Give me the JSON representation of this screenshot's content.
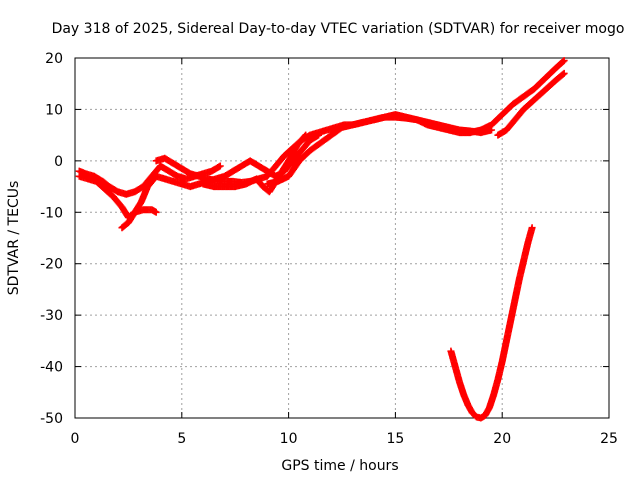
{
  "chart_data": {
    "type": "scatter",
    "title": "Day 318 of 2025, Sidereal Day-to-day VTEC variation (SDTVAR) for receiver mogo",
    "xlabel": "GPS time / hours",
    "ylabel": "SDTVAR / TECUs",
    "xlim": [
      0,
      25
    ],
    "ylim": [
      -50,
      20
    ],
    "xticks": [
      "0",
      "5",
      "10",
      "15",
      "20",
      "25"
    ],
    "yticks": [
      "-50",
      "-40",
      "-30",
      "-20",
      "-10",
      "0",
      "10",
      "20"
    ],
    "xtick_values": [
      0,
      5,
      10,
      15,
      20,
      25
    ],
    "ytick_values": [
      -50,
      -40,
      -30,
      -20,
      -10,
      0,
      10,
      20
    ],
    "grid": true,
    "marker": "plus",
    "color": "#ff0000",
    "series": [
      {
        "x": [
          0.2,
          0.5,
          0.9,
          1.3,
          1.6,
          2.0,
          2.4,
          2.8,
          3.2,
          3.6,
          4.0,
          4.4,
          4.8,
          5.2,
          5.6,
          6.0,
          6.4,
          6.8
        ],
        "y": [
          -2,
          -2.5,
          -3,
          -4,
          -5,
          -6,
          -6.5,
          -6,
          -5,
          -3,
          -1,
          -2,
          -3,
          -3.5,
          -3,
          -2.5,
          -2,
          -1
        ]
      },
      {
        "x": [
          0.2,
          0.6,
          1.0,
          1.4,
          1.8,
          2.2,
          2.5,
          2.8,
          3.2,
          3.6,
          3.8
        ],
        "y": [
          -3,
          -3.5,
          -4,
          -5.5,
          -7,
          -9,
          -11,
          -10,
          -9.5,
          -9.5,
          -10
        ]
      },
      {
        "x": [
          2.2,
          2.5,
          2.8,
          3.1,
          3.4,
          3.8,
          4.2,
          4.6,
          5.0,
          5.4,
          5.8,
          6.2,
          6.6,
          7.0,
          7.4,
          7.8,
          8.2,
          8.6,
          9.0,
          9.4,
          9.8,
          10.2,
          10.6,
          11.0,
          11.4
        ],
        "y": [
          -13,
          -12,
          -10,
          -8,
          -5,
          -3,
          -3.5,
          -4,
          -4.5,
          -5,
          -4.5,
          -4,
          -3.5,
          -3,
          -2,
          -1,
          0,
          -1,
          -2,
          -3,
          -2,
          0,
          2,
          4,
          5
        ]
      },
      {
        "x": [
          3.8,
          4.2,
          4.6,
          5.0,
          5.4,
          5.8,
          6.2,
          6.6,
          7.0,
          7.4,
          7.8,
          8.2,
          8.6,
          9.0,
          9.4,
          9.8,
          10.2,
          10.6,
          11.0,
          11.4,
          11.8,
          12.2,
          12.6,
          13.0
        ],
        "y": [
          0,
          0.5,
          -0.5,
          -1.5,
          -2.5,
          -3,
          -3.5,
          -3.8,
          -4,
          -4,
          -4.2,
          -4,
          -3.5,
          -3,
          -1,
          1,
          2.5,
          4,
          5,
          5.5,
          6,
          6.5,
          7,
          7
        ]
      },
      {
        "x": [
          6.0,
          6.5,
          7.0,
          7.5,
          8.0,
          8.5,
          8.8,
          9.1,
          9.4,
          9.7,
          10.0,
          10.4,
          10.8
        ],
        "y": [
          -4.5,
          -5,
          -5,
          -5,
          -4.5,
          -3.5,
          -5,
          -6,
          -4,
          -2,
          0,
          3,
          5
        ]
      },
      {
        "x": [
          9.0,
          9.5,
          10.0,
          10.5,
          11.0,
          11.5,
          12.0,
          12.5,
          13.0,
          13.5,
          14.0,
          14.5,
          15.0,
          15.5,
          16.0,
          16.5,
          17.0,
          17.5,
          18.0,
          18.5,
          19.0,
          19.5
        ],
        "y": [
          -4.5,
          -4,
          -3,
          0,
          2,
          3.5,
          5,
          6.5,
          7,
          7.5,
          8,
          8.5,
          8.5,
          8.3,
          8,
          7.5,
          7,
          6.5,
          6,
          5.8,
          5.5,
          6
        ]
      },
      {
        "x": [
          13.0,
          13.5,
          14.0,
          14.5,
          15.0,
          15.5,
          16.0,
          16.5,
          17.0,
          17.5,
          18.0,
          18.5,
          19.0,
          19.5,
          20.0,
          20.5,
          21.0,
          21.5,
          22.0,
          22.5,
          22.9
        ],
        "y": [
          7,
          7.5,
          8,
          8.5,
          9,
          8.5,
          8,
          7,
          6.5,
          6,
          5.5,
          5.5,
          6,
          7,
          9,
          11,
          12.5,
          14,
          16,
          18,
          19.5
        ]
      },
      {
        "x": [
          19.8,
          20.2,
          20.6,
          21.0,
          21.4,
          21.8,
          22.2,
          22.6,
          22.9
        ],
        "y": [
          5,
          6,
          8,
          10,
          11.5,
          13,
          14.5,
          16,
          17
        ]
      },
      {
        "x": [
          17.6,
          17.8,
          18.0,
          18.2,
          18.4,
          18.6,
          18.8,
          19.0,
          19.2,
          19.4,
          19.6,
          19.8,
          20.0,
          20.2,
          20.4,
          20.6,
          20.8,
          21.0,
          21.2,
          21.4
        ],
        "y": [
          -37,
          -40,
          -43,
          -45.5,
          -47.5,
          -49,
          -49.8,
          -50,
          -49.5,
          -48,
          -45.5,
          -42.5,
          -39,
          -35,
          -31,
          -27,
          -23,
          -19.5,
          -16,
          -13
        ]
      }
    ]
  }
}
